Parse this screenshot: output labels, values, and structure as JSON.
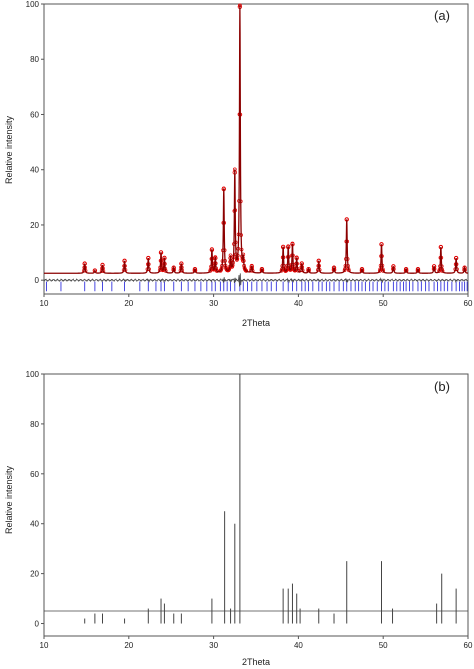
{
  "chart_data": [
    {
      "type": "line",
      "panel_label": "(a)",
      "xlabel": "2Theta",
      "ylabel": "Relative intensity",
      "xlim": [
        10,
        60
      ],
      "ylim": [
        -5,
        100
      ],
      "xticks": [
        10,
        20,
        30,
        40,
        50,
        60
      ],
      "yticks": [
        0,
        20,
        40,
        60,
        80,
        100
      ],
      "baseline": 2.5,
      "peaks": [
        {
          "x": 14.8,
          "y": 6
        },
        {
          "x": 16.0,
          "y": 3.5
        },
        {
          "x": 16.9,
          "y": 5.5
        },
        {
          "x": 19.5,
          "y": 7
        },
        {
          "x": 22.3,
          "y": 8
        },
        {
          "x": 23.8,
          "y": 10
        },
        {
          "x": 24.2,
          "y": 8
        },
        {
          "x": 25.3,
          "y": 4.5
        },
        {
          "x": 26.2,
          "y": 6
        },
        {
          "x": 27.8,
          "y": 4
        },
        {
          "x": 29.8,
          "y": 11
        },
        {
          "x": 30.2,
          "y": 8
        },
        {
          "x": 31.2,
          "y": 33
        },
        {
          "x": 32.0,
          "y": 8
        },
        {
          "x": 32.5,
          "y": 39
        },
        {
          "x": 33.1,
          "y": 99
        },
        {
          "x": 33.5,
          "y": 7
        },
        {
          "x": 34.5,
          "y": 5
        },
        {
          "x": 35.7,
          "y": 4
        },
        {
          "x": 38.2,
          "y": 12
        },
        {
          "x": 38.8,
          "y": 12
        },
        {
          "x": 39.3,
          "y": 13
        },
        {
          "x": 39.8,
          "y": 8
        },
        {
          "x": 40.4,
          "y": 6
        },
        {
          "x": 41.2,
          "y": 4
        },
        {
          "x": 42.4,
          "y": 7
        },
        {
          "x": 44.2,
          "y": 4.5
        },
        {
          "x": 45.7,
          "y": 22
        },
        {
          "x": 47.5,
          "y": 4
        },
        {
          "x": 49.8,
          "y": 13
        },
        {
          "x": 51.2,
          "y": 5
        },
        {
          "x": 52.7,
          "y": 4
        },
        {
          "x": 54.1,
          "y": 4
        },
        {
          "x": 56.0,
          "y": 5
        },
        {
          "x": 56.8,
          "y": 12
        },
        {
          "x": 58.6,
          "y": 8
        },
        {
          "x": 59.6,
          "y": 4.5
        }
      ],
      "reflection_ticks": [
        10.3,
        12.0,
        14.8,
        16.0,
        16.9,
        18.0,
        19.5,
        21.3,
        22.3,
        23.2,
        23.8,
        24.2,
        25.3,
        26.2,
        27.0,
        27.8,
        28.5,
        29.2,
        29.8,
        30.2,
        30.8,
        31.2,
        31.6,
        32.0,
        32.5,
        33.1,
        33.5,
        34.0,
        34.5,
        35.1,
        35.7,
        36.3,
        36.8,
        37.4,
        38.2,
        38.8,
        39.3,
        39.8,
        40.4,
        40.8,
        41.2,
        41.7,
        42.4,
        42.8,
        43.3,
        43.7,
        44.2,
        44.8,
        45.3,
        45.7,
        46.2,
        46.7,
        47.1,
        47.5,
        47.9,
        48.4,
        48.8,
        49.3,
        49.8,
        50.2,
        50.6,
        51.2,
        51.6,
        52.0,
        52.4,
        52.7,
        53.1,
        53.5,
        54.1,
        54.5,
        55.0,
        55.4,
        56.0,
        56.4,
        56.8,
        57.2,
        57.6,
        58.1,
        58.6,
        59.0,
        59.3,
        59.6,
        59.9
      ],
      "colors": {
        "observed": "#e00000",
        "calculated": "#8b0000",
        "difference": "#4a4a4a",
        "reflections": "#3333dd"
      }
    },
    {
      "type": "bar",
      "panel_label": "(b)",
      "xlabel": "2Theta",
      "ylabel": "Relative intensity",
      "xlim": [
        10,
        60
      ],
      "ylim": [
        -5,
        100
      ],
      "xticks": [
        10,
        20,
        30,
        40,
        50,
        60
      ],
      "yticks": [
        0,
        20,
        40,
        60,
        80,
        100
      ],
      "lines": [
        {
          "x": 14.8,
          "y": 2
        },
        {
          "x": 16.0,
          "y": 4
        },
        {
          "x": 16.9,
          "y": 4
        },
        {
          "x": 19.5,
          "y": 2
        },
        {
          "x": 22.3,
          "y": 6
        },
        {
          "x": 23.8,
          "y": 10
        },
        {
          "x": 24.2,
          "y": 8
        },
        {
          "x": 25.3,
          "y": 4
        },
        {
          "x": 26.2,
          "y": 4
        },
        {
          "x": 29.8,
          "y": 10
        },
        {
          "x": 31.3,
          "y": 45
        },
        {
          "x": 32.0,
          "y": 6
        },
        {
          "x": 32.5,
          "y": 40
        },
        {
          "x": 33.1,
          "y": 100
        },
        {
          "x": 38.2,
          "y": 14
        },
        {
          "x": 38.8,
          "y": 14
        },
        {
          "x": 39.3,
          "y": 16
        },
        {
          "x": 39.8,
          "y": 12
        },
        {
          "x": 40.2,
          "y": 6
        },
        {
          "x": 42.4,
          "y": 6
        },
        {
          "x": 44.2,
          "y": 4
        },
        {
          "x": 45.7,
          "y": 25
        },
        {
          "x": 49.8,
          "y": 25
        },
        {
          "x": 51.1,
          "y": 6
        },
        {
          "x": 56.3,
          "y": 8
        },
        {
          "x": 56.9,
          "y": 20
        },
        {
          "x": 58.6,
          "y": 14
        }
      ],
      "colors": {
        "lines": "#444444"
      }
    }
  ]
}
